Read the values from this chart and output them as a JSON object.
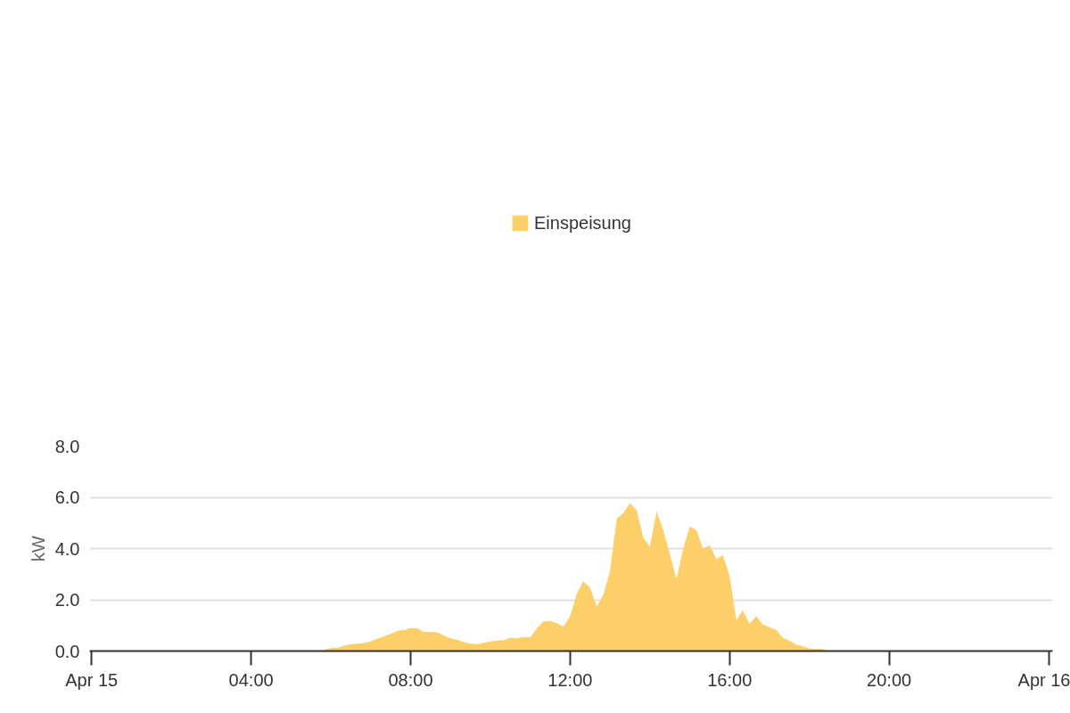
{
  "chart_data": {
    "type": "area",
    "ylabel": "kW",
    "legend": "top",
    "grid": "y",
    "xlim": [
      -0.05,
      24.1
    ],
    "ylim": [
      0,
      8
    ],
    "xticks": [
      {
        "value": 0,
        "label": "Apr 15"
      },
      {
        "value": 4,
        "label": "04:00"
      },
      {
        "value": 8,
        "label": "08:00"
      },
      {
        "value": 12,
        "label": "12:00"
      },
      {
        "value": 16,
        "label": "16:00"
      },
      {
        "value": 20,
        "label": "20:00"
      },
      {
        "value": 24,
        "label": "Apr 16"
      }
    ],
    "yticks": [
      {
        "value": 0,
        "label": "0.0"
      },
      {
        "value": 2,
        "label": "2.0"
      },
      {
        "value": 4,
        "label": "4.0"
      },
      {
        "value": 6,
        "label": "6.0"
      },
      {
        "value": 8,
        "label": "8.0"
      }
    ],
    "series": [
      {
        "name": "Einspeisung",
        "color": "#fdcf68",
        "x": [
          5.5,
          5.67,
          5.83,
          6.0,
          6.17,
          6.33,
          6.5,
          6.67,
          6.83,
          7.0,
          7.17,
          7.33,
          7.5,
          7.67,
          7.83,
          8.0,
          8.17,
          8.33,
          8.5,
          8.67,
          8.83,
          9.0,
          9.17,
          9.33,
          9.5,
          9.67,
          9.83,
          10.0,
          10.17,
          10.33,
          10.5,
          10.67,
          10.83,
          11.0,
          11.17,
          11.33,
          11.5,
          11.67,
          11.83,
          12.0,
          12.17,
          12.33,
          12.5,
          12.67,
          12.83,
          13.0,
          13.17,
          13.33,
          13.5,
          13.67,
          13.83,
          14.0,
          14.17,
          14.33,
          14.5,
          14.67,
          14.83,
          15.0,
          15.17,
          15.33,
          15.5,
          15.67,
          15.83,
          16.0,
          16.17,
          16.33,
          16.5,
          16.67,
          16.83,
          17.0,
          17.17,
          17.33,
          17.5,
          17.67,
          17.83,
          18.0,
          18.17,
          18.33,
          18.5
        ],
        "values": [
          0,
          0,
          0.04,
          0.12,
          0.13,
          0.21,
          0.27,
          0.29,
          0.31,
          0.38,
          0.49,
          0.57,
          0.67,
          0.79,
          0.82,
          0.9,
          0.89,
          0.75,
          0.75,
          0.73,
          0.61,
          0.5,
          0.44,
          0.35,
          0.29,
          0.27,
          0.31,
          0.37,
          0.41,
          0.42,
          0.52,
          0.5,
          0.55,
          0.54,
          0.89,
          1.16,
          1.17,
          1.09,
          0.96,
          1.36,
          2.24,
          2.72,
          2.47,
          1.74,
          2.2,
          3.12,
          5.17,
          5.37,
          5.77,
          5.5,
          4.44,
          4.07,
          5.45,
          4.75,
          3.78,
          2.82,
          3.96,
          4.86,
          4.71,
          4.0,
          4.12,
          3.59,
          3.75,
          2.93,
          1.21,
          1.59,
          1.07,
          1.36,
          1.04,
          0.93,
          0.83,
          0.52,
          0.4,
          0.25,
          0.19,
          0.1,
          0.09,
          0.08,
          0
        ]
      }
    ]
  }
}
